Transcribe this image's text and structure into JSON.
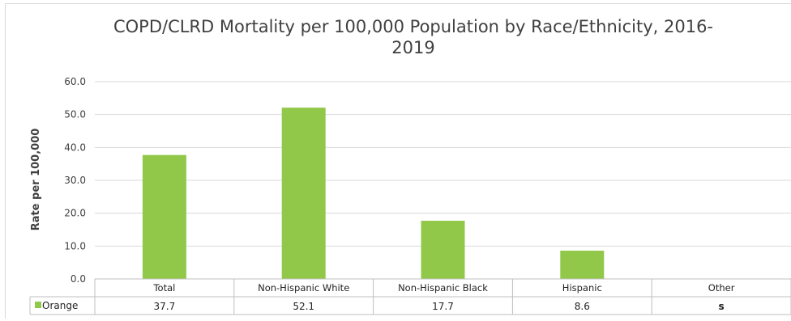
{
  "chart_data": {
    "type": "bar",
    "title": "COPD/CLRD Mortality per 100,000 Population by Race/Ethnicity, 2016-2019",
    "ylabel": "Rate per 100,000",
    "xlabel": "",
    "ylim": [
      0,
      60
    ],
    "y_ticks": [
      "0.0",
      "10.0",
      "20.0",
      "30.0",
      "40.0",
      "50.0",
      "60.0"
    ],
    "grid": true,
    "categories": [
      "Total",
      "Non-Hispanic White",
      "Non-Hispanic Black",
      "Hispanic",
      "Other"
    ],
    "series": [
      {
        "name": "Orange",
        "color": "#92c84a",
        "values": [
          37.7,
          52.1,
          17.7,
          8.6,
          null
        ],
        "table_values": [
          "37.7",
          "52.1",
          "17.7",
          "8.6",
          "s"
        ]
      }
    ],
    "data_table": true
  }
}
